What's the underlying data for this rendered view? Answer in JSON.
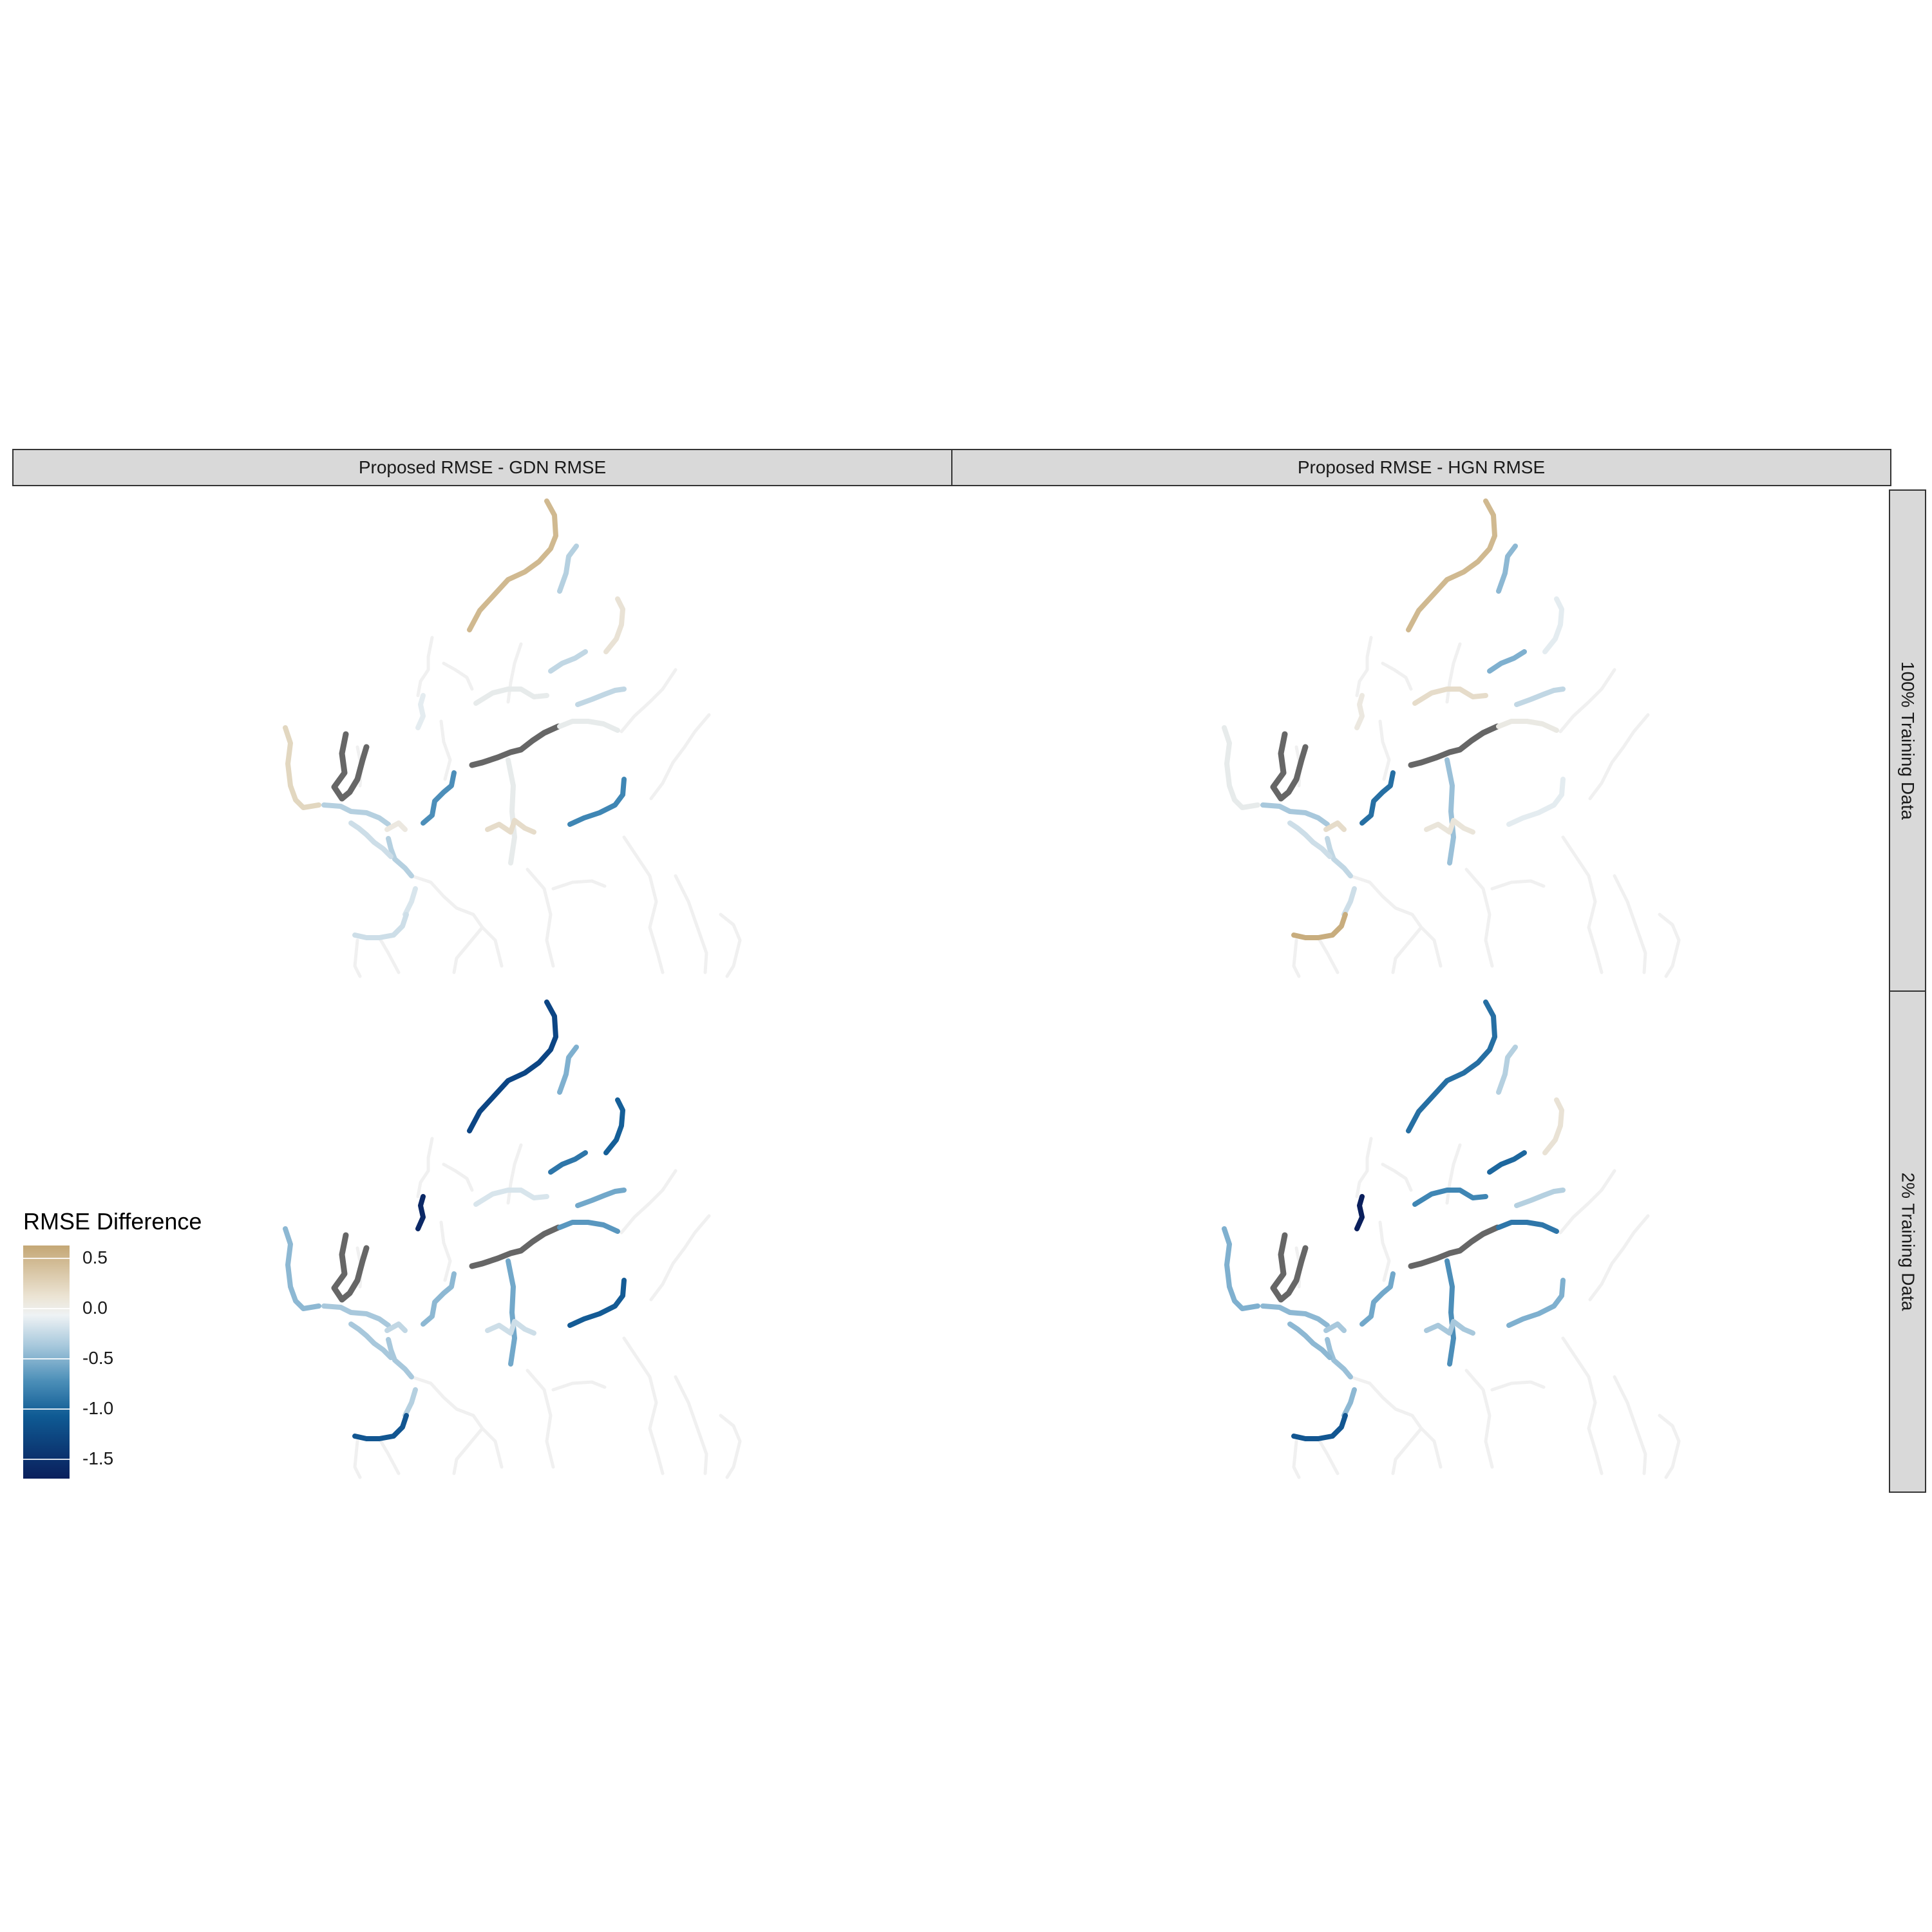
{
  "facets": {
    "columns": [
      "Proposed RMSE - GDN RMSE",
      "Proposed RMSE - HGN RMSE"
    ],
    "rows": [
      "100% Training Data",
      "2% Training Data"
    ]
  },
  "legend": {
    "title": "RMSE Difference",
    "ticks": [
      {
        "value": 0.5,
        "label": "0.5"
      },
      {
        "value": 0.0,
        "label": "0.0"
      },
      {
        "value": -0.5,
        "label": "-0.5"
      },
      {
        "value": -1.0,
        "label": "-1.0"
      },
      {
        "value": -1.5,
        "label": "-1.5"
      }
    ],
    "range": [
      -1.7,
      0.62
    ],
    "colors": {
      "positive": "#c4a775",
      "neutral": "#ece8e0",
      "mid_negative": "#4c8fb8",
      "strong_negative": "#0a1f5c",
      "no_data": "#666666",
      "background_river": "#f0f0f0"
    }
  },
  "map_data": {
    "segments": [
      "n1",
      "n2",
      "n3",
      "n4",
      "n5",
      "n6",
      "w1",
      "w2",
      "w3",
      "wg",
      "c1",
      "cg",
      "c2",
      "m1",
      "e1",
      "e2",
      "e3",
      "s1",
      "s2",
      "s3",
      "s4"
    ],
    "values": {
      "gdn_100": {
        "n1": 0.45,
        "n2": -0.3,
        "n3": 0.1,
        "n4": -0.25,
        "n5": -0.05,
        "n6": -0.1,
        "w1": 0.2,
        "w2": -0.3,
        "w3": 0.05,
        "wg": null,
        "c1": -0.05,
        "cg": null,
        "c2": -0.7,
        "m1": 0.15,
        "e1": -0.05,
        "e2": -0.25,
        "e3": -0.75,
        "s1": -0.3,
        "s2": -0.2,
        "s3": -0.15,
        "s4": -0.2
      },
      "hgn_100": {
        "n1": 0.45,
        "n2": -0.45,
        "n3": -0.1,
        "n4": -0.5,
        "n5": 0.15,
        "n6": 0.05,
        "w1": -0.05,
        "w2": -0.35,
        "w3": 0.15,
        "wg": null,
        "c1": -0.4,
        "cg": null,
        "c2": -0.9,
        "m1": 0.08,
        "e1": 0.02,
        "e2": -0.25,
        "e3": -0.1,
        "s1": -0.25,
        "s2": -0.2,
        "s3": -0.2,
        "s4": 0.55
      },
      "gdn_2": {
        "n1": -1.3,
        "n2": -0.5,
        "n3": -1.0,
        "n4": -0.85,
        "n5": -0.15,
        "n6": -1.6,
        "w1": -0.45,
        "w2": -0.35,
        "w3": -0.25,
        "wg": null,
        "c1": -0.55,
        "cg": null,
        "c2": -0.45,
        "m1": -0.2,
        "e1": -0.65,
        "e2": -0.55,
        "e3": -1.05,
        "s1": -0.35,
        "s2": -0.35,
        "s3": -0.3,
        "s4": -1.1
      },
      "hgn_2": {
        "n1": -0.9,
        "n2": -0.3,
        "n3": 0.1,
        "n4": -0.95,
        "n5": -0.75,
        "n6": -1.7,
        "w1": -0.5,
        "w2": -0.45,
        "w3": -0.35,
        "wg": null,
        "c1": -0.7,
        "cg": null,
        "c2": -0.55,
        "m1": -0.35,
        "e1": -0.85,
        "e2": -0.3,
        "e3": -0.5,
        "s1": -0.4,
        "s2": -0.45,
        "s3": -0.45,
        "s4": -1.1
      }
    }
  }
}
